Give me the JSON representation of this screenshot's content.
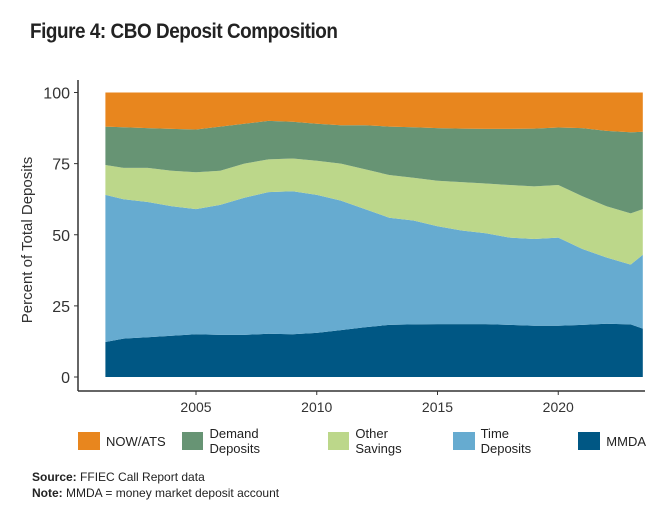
{
  "title": "Figure 4: CBO Deposit Composition",
  "chart_data": {
    "type": "area",
    "stacked": true,
    "ylabel": "Percent of Total Deposits",
    "xlabel": "",
    "ylim": [
      0,
      100
    ],
    "xlim": [
      2000.1,
      2024
    ],
    "yticks": [
      "0",
      "25",
      "50",
      "75",
      "100"
    ],
    "ytick_values": [
      0,
      25,
      50,
      75,
      100
    ],
    "xticks": [
      "2005",
      "2010",
      "2015",
      "2020"
    ],
    "xtick_values": [
      2005,
      2010,
      2015,
      2020
    ],
    "grid": false,
    "legend_position": "bottom",
    "x": [
      2001.25,
      2002,
      2003,
      2004,
      2005,
      2006,
      2007,
      2008,
      2009,
      2010,
      2011,
      2012,
      2013,
      2014,
      2015,
      2016,
      2017,
      2018,
      2019,
      2020,
      2021,
      2022,
      2023,
      2023.5
    ],
    "series": [
      {
        "name": "MMDA",
        "color": "#005784",
        "values": [
          12.3,
          13.5,
          14,
          14.5,
          15,
          14.8,
          14.8,
          15.2,
          15,
          15.5,
          16.5,
          17.5,
          18.3,
          18.5,
          18.6,
          18.6,
          18.6,
          18.3,
          18,
          18,
          18.3,
          18.7,
          18.5,
          17
        ]
      },
      {
        "name": "Time Deposits",
        "color": "#66ABD0",
        "values": [
          51.7,
          49,
          47.5,
          45.5,
          44,
          45.7,
          48.2,
          49.8,
          50.3,
          48.5,
          45.5,
          41.5,
          37.7,
          36.5,
          34.4,
          32.9,
          31.9,
          30.7,
          30.5,
          31,
          26.7,
          23.3,
          21,
          26
        ]
      },
      {
        "name": "Other Savings",
        "color": "#BCD78A",
        "values": [
          10.5,
          11,
          12,
          12.5,
          13,
          12,
          12,
          11.5,
          11.5,
          12,
          13,
          14,
          15,
          15,
          16,
          17,
          17.5,
          18.5,
          18.5,
          18.5,
          18.5,
          18,
          18,
          16
        ]
      },
      {
        "name": "Demand Deposits",
        "color": "#679474",
        "values": [
          13.5,
          14.3,
          14,
          14.7,
          15,
          15.5,
          14,
          13.5,
          12.9,
          13,
          13.5,
          15.5,
          17,
          17.8,
          18.5,
          18.8,
          19.2,
          19.7,
          20.3,
          20.2,
          24,
          26.5,
          28.5,
          27.2
        ]
      },
      {
        "name": "NOW/ATS",
        "color": "#E8861E",
        "values": [
          12,
          12.2,
          12.5,
          12.8,
          13,
          12,
          11,
          10,
          10.3,
          11,
          11.5,
          11.5,
          12,
          12.2,
          12.5,
          12.7,
          12.8,
          12.8,
          12.7,
          12.3,
          12.5,
          13.5,
          14,
          13.8
        ]
      }
    ],
    "legend_order": [
      "NOW/ATS",
      "Demand Deposits",
      "Other Savings",
      "Time Deposits",
      "MMDA"
    ]
  },
  "source_label": "Source:",
  "source_text": "FFIEC Call Report data",
  "note_label": "Note:",
  "note_text": "MMDA = money market deposit account"
}
